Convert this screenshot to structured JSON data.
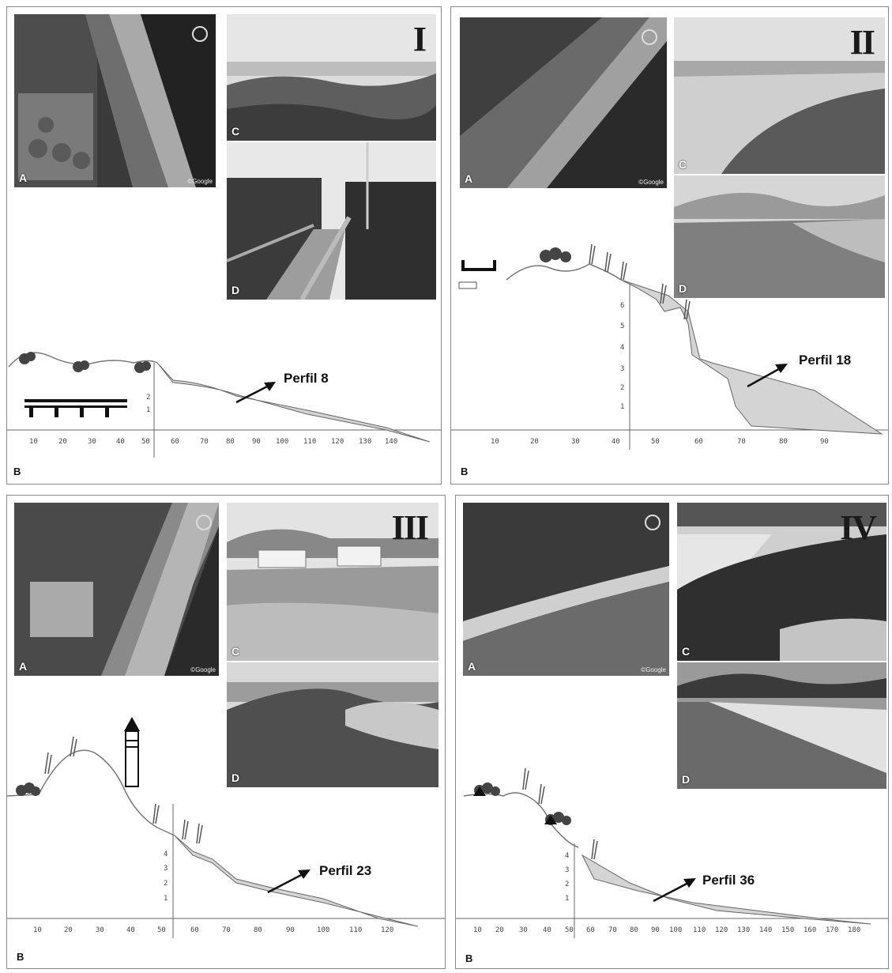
{
  "panels": [
    {
      "roman": "I",
      "photo_a_label": "A",
      "photo_c_label": "C",
      "photo_d_label": "D",
      "credit": "©Google",
      "b_label": "B",
      "perfil_label": "Perfil 8",
      "x_ticks": [
        "10",
        "20",
        "30",
        "40",
        "50",
        "60",
        "70",
        "80",
        "90",
        "100",
        "110",
        "120",
        "130",
        "140"
      ],
      "y_ticks": [
        "1",
        "2"
      ]
    },
    {
      "roman": "II",
      "photo_a_label": "A",
      "photo_c_label": "C",
      "photo_d_label": "D",
      "credit": "©Google",
      "b_label": "B",
      "perfil_label": "Perfil 18",
      "x_ticks": [
        "10",
        "20",
        "30",
        "40",
        "50",
        "60",
        "70",
        "80",
        "90"
      ],
      "y_ticks": [
        "1",
        "2",
        "3",
        "4",
        "5",
        "6"
      ]
    },
    {
      "roman": "III",
      "photo_a_label": "A",
      "photo_c_label": "C",
      "photo_d_label": "D",
      "credit": "©Google",
      "b_label": "B",
      "perfil_label": "Perfil 23",
      "x_ticks": [
        "10",
        "20",
        "30",
        "40",
        "50",
        "60",
        "70",
        "80",
        "90",
        "100",
        "110",
        "120"
      ],
      "y_ticks": [
        "1",
        "2",
        "3",
        "4"
      ]
    },
    {
      "roman": "IV",
      "photo_a_label": "A",
      "photo_c_label": "C",
      "photo_d_label": "D",
      "credit": "©Google",
      "b_label": "B",
      "perfil_label": "Perfil 36",
      "x_ticks": [
        "10",
        "20",
        "30",
        "40",
        "50",
        "60",
        "70",
        "80",
        "90",
        "100",
        "110",
        "120",
        "130",
        "140",
        "150",
        "160",
        "170",
        "180"
      ],
      "y_ticks": [
        "1",
        "2",
        "3",
        "4"
      ]
    }
  ],
  "colors": {
    "profile_fill": "#d4d4d4",
    "line": "#555555",
    "photo_dark": "#2e2e2e",
    "photo_mid": "#8c8c8c",
    "photo_light": "#cfcfcf"
  }
}
